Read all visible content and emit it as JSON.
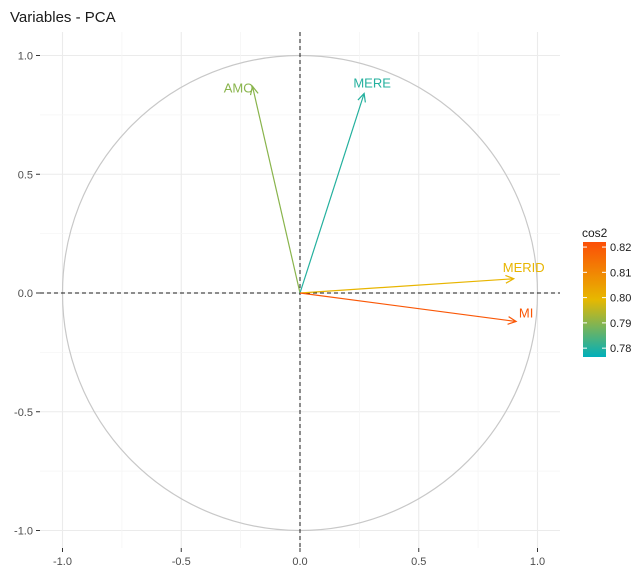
{
  "chart_data": {
    "type": "scatter",
    "subtype": "pca-variable-correlation-circle",
    "title": "Variables - PCA",
    "xlabel": "",
    "ylabel": "",
    "xlim": [
      -1.0,
      1.0
    ],
    "ylim": [
      -1.0,
      1.0
    ],
    "xticks": [
      -1.0,
      -0.5,
      0.0,
      0.5,
      1.0
    ],
    "yticks": [
      -1.0,
      -0.5,
      0.0,
      0.5,
      1.0
    ],
    "xtick_labels": [
      "-1.0",
      "-0.5",
      "0.0",
      "0.5",
      "1.0"
    ],
    "ytick_labels": [
      "-1.0",
      "-0.5",
      "0.0",
      "0.5",
      "1.0"
    ],
    "grid": true,
    "unit_circle": true,
    "variables": [
      {
        "name": "AMO",
        "x": -0.2,
        "y": 0.87,
        "cos2": 0.79
      },
      {
        "name": "MERE",
        "x": 0.27,
        "y": 0.84,
        "cos2": 0.78
      },
      {
        "name": "MERID",
        "x": 0.9,
        "y": 0.06,
        "cos2": 0.8
      },
      {
        "name": "MI",
        "x": 0.91,
        "y": -0.12,
        "cos2": 0.82
      }
    ],
    "legend": {
      "title": "cos2",
      "position": "right",
      "ticks": [
        0.82,
        0.81,
        0.8,
        0.79,
        0.78
      ],
      "tick_labels": [
        "0.82",
        "0.81",
        "0.80",
        "0.79",
        "0.78"
      ],
      "range": [
        0.7765,
        0.822
      ],
      "colors": [
        "#00AFBB",
        "#E7B800",
        "#FC4E07"
      ]
    }
  }
}
